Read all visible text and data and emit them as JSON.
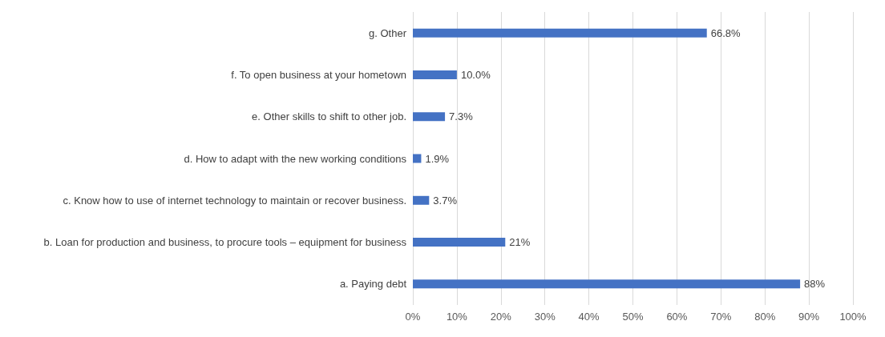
{
  "chart_data": {
    "type": "bar",
    "orientation": "horizontal",
    "categories": [
      "g. Other",
      "f. To open business at your hometown",
      "e. Other skills to shift to other job.",
      "d. How to adapt with the new working conditions",
      "c. Know how to use of internet technology to maintain or recover business.",
      "b. Loan for production and business, to procure tools – equipment for business",
      "a. Paying debt"
    ],
    "values": [
      66.8,
      10.0,
      7.3,
      1.9,
      3.7,
      21,
      88
    ],
    "value_labels": [
      "66.8%",
      "10.0%",
      "7.3%",
      "1.9%",
      "3.7%",
      "21%",
      "88%"
    ],
    "color": "#4472c4",
    "xlim": [
      0,
      100
    ],
    "xticks": [
      {
        "value": 0,
        "label": "0%"
      },
      {
        "value": 10,
        "label": "10%"
      },
      {
        "value": 20,
        "label": "20%"
      },
      {
        "value": 30,
        "label": "30%"
      },
      {
        "value": 40,
        "label": "40%"
      },
      {
        "value": 50,
        "label": "50%"
      },
      {
        "value": 60,
        "label": "60%"
      },
      {
        "value": 70,
        "label": "70%"
      },
      {
        "value": 80,
        "label": "80%"
      },
      {
        "value": 90,
        "label": "90%"
      },
      {
        "value": 100,
        "label": "100%"
      }
    ],
    "grid": "x"
  }
}
